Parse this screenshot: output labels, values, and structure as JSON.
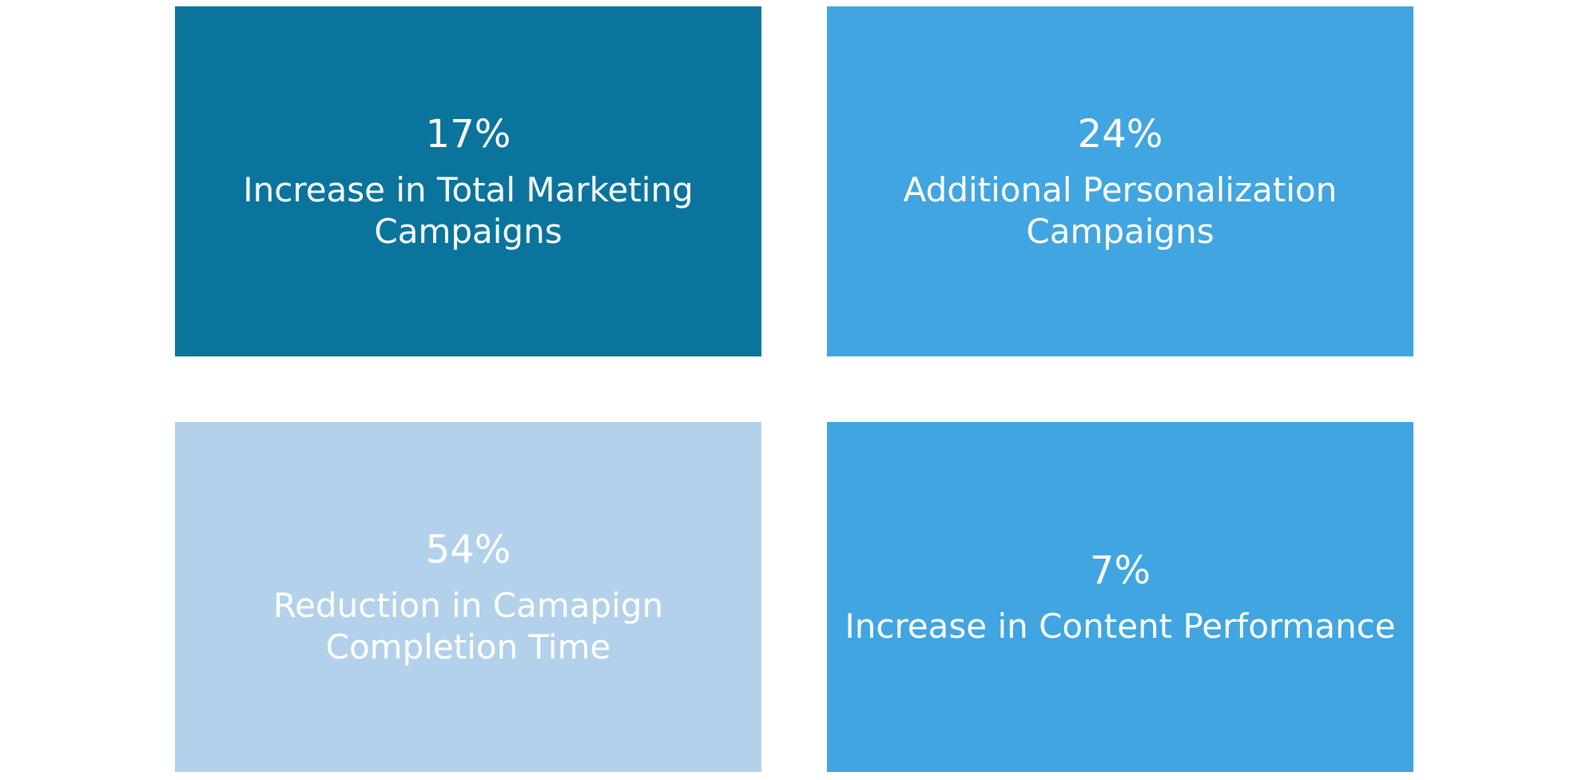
{
  "tiles": [
    {
      "value": "17%",
      "label_lines": [
        "Increase in Total Marketing",
        "Campaigns"
      ],
      "color": "#0A749D"
    },
    {
      "value": "24%",
      "label_lines": [
        "Additional Personalization",
        "Campaigns"
      ],
      "color": "#40A5E0"
    },
    {
      "value": "54%",
      "label_lines": [
        "Reduction in Camapign",
        "Completion Time"
      ],
      "color": "#B3D1EA"
    },
    {
      "value": "7%",
      "label_lines": [
        "Increase in Content Performance"
      ],
      "color": "#40A5E0"
    }
  ]
}
